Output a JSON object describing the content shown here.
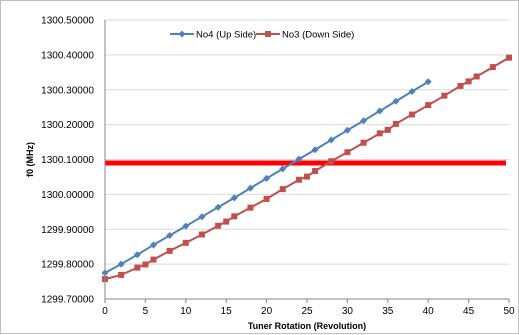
{
  "chart_data": {
    "type": "line",
    "title": "",
    "xlabel": "Tuner Rotation (Revolution)",
    "ylabel": "f0 (MHz)",
    "xlim": [
      0,
      50
    ],
    "ylim": [
      1299.7,
      1300.5
    ],
    "x_ticks": [
      "0",
      "5",
      "10",
      "15",
      "20",
      "25",
      "30",
      "35",
      "40",
      "45",
      "50"
    ],
    "y_ticks": [
      "1299.70000",
      "1299.80000",
      "1299.90000",
      "1300.00000",
      "1300.10000",
      "1300.20000",
      "1300.30000",
      "1300.40000",
      "1300.50000"
    ],
    "grid": "horizontal",
    "legend_position": "top",
    "series": [
      {
        "name": "No4 (Up Side)",
        "color": "#4f81bd",
        "marker": "diamond",
        "x": [
          0,
          2,
          4,
          6,
          8,
          10,
          12,
          14,
          16,
          18,
          20,
          22,
          24,
          26,
          28,
          30,
          32,
          34,
          36,
          38,
          40
        ],
        "y": [
          1299.775,
          1299.8,
          1299.827,
          1299.855,
          1299.882,
          1299.909,
          1299.936,
          1299.963,
          1299.99,
          1300.018,
          1300.046,
          1300.073,
          1300.101,
          1300.128,
          1300.156,
          1300.184,
          1300.211,
          1300.239,
          1300.267,
          1300.295,
          1300.323
        ]
      },
      {
        "name": "No3 (Down Side)",
        "color": "#c0504d",
        "marker": "square",
        "x": [
          0,
          2,
          4,
          5,
          6,
          8,
          10,
          12,
          14,
          15,
          16,
          18,
          20,
          22,
          24,
          25,
          26,
          28,
          30,
          32,
          34,
          35,
          36,
          38,
          40,
          42,
          44,
          45,
          46,
          48,
          50
        ],
        "y": [
          1299.757,
          1299.769,
          1299.79,
          1299.799,
          1299.813,
          1299.838,
          1299.861,
          1299.885,
          1299.91,
          1299.922,
          1299.937,
          1299.962,
          1299.987,
          1300.015,
          1300.042,
          1300.051,
          1300.067,
          1300.095,
          1300.121,
          1300.148,
          1300.175,
          1300.185,
          1300.202,
          1300.229,
          1300.256,
          1300.283,
          1300.311,
          1300.324,
          1300.338,
          1300.365,
          1300.392
        ]
      }
    ],
    "reference_line": {
      "y": 1300.09,
      "color": "#ff0000"
    }
  }
}
